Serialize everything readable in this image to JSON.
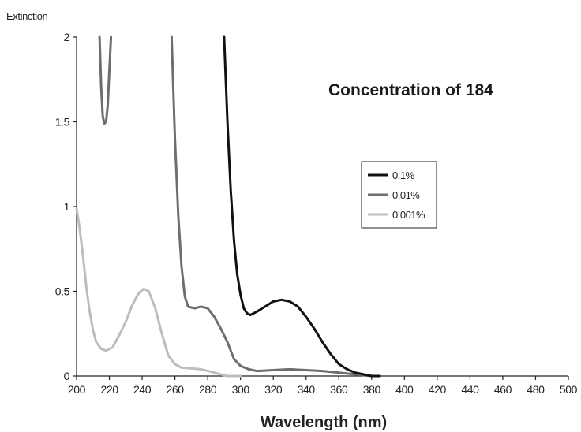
{
  "chart_data": {
    "type": "line",
    "title": "Concentration of 184",
    "xlabel": "Wavelength (nm)",
    "ylabel": "Extinction",
    "xlim": [
      200,
      500
    ],
    "ylim": [
      0,
      2
    ],
    "x_ticks": [
      200,
      220,
      240,
      260,
      280,
      300,
      320,
      340,
      360,
      380,
      400,
      420,
      440,
      460,
      480,
      500
    ],
    "y_ticks": [
      {
        "value": 0,
        "label": "0"
      },
      {
        "value": 0.5,
        "label": "0.5"
      },
      {
        "value": 1,
        "label": "1"
      },
      {
        "value": 1.5,
        "label": "1.5"
      },
      {
        "value": 2,
        "label": "2"
      }
    ],
    "legend_position": "right",
    "grid": false,
    "series": [
      {
        "name": "0.1%",
        "color": "#111111",
        "points": [
          [
            290,
            2.0
          ],
          [
            292,
            1.5
          ],
          [
            294,
            1.1
          ],
          [
            296,
            0.8
          ],
          [
            298,
            0.6
          ],
          [
            300,
            0.48
          ],
          [
            302,
            0.4
          ],
          [
            304,
            0.37
          ],
          [
            306,
            0.36
          ],
          [
            310,
            0.38
          ],
          [
            315,
            0.41
          ],
          [
            320,
            0.44
          ],
          [
            325,
            0.45
          ],
          [
            330,
            0.44
          ],
          [
            335,
            0.41
          ],
          [
            340,
            0.35
          ],
          [
            345,
            0.28
          ],
          [
            350,
            0.2
          ],
          [
            355,
            0.13
          ],
          [
            360,
            0.07
          ],
          [
            365,
            0.04
          ],
          [
            370,
            0.02
          ],
          [
            375,
            0.01
          ],
          [
            380,
            0.0
          ],
          [
            385,
            0.0
          ]
        ]
      },
      {
        "name": "0.01%",
        "color": "#6e6e6e",
        "points": [
          [
            214,
            2.0
          ],
          [
            215,
            1.7
          ],
          [
            216,
            1.53
          ],
          [
            217,
            1.49
          ],
          [
            218,
            1.5
          ],
          [
            219,
            1.6
          ],
          [
            220,
            1.8
          ],
          [
            221,
            2.0
          ],
          [
            258,
            2.0
          ],
          [
            260,
            1.4
          ],
          [
            262,
            0.95
          ],
          [
            264,
            0.65
          ],
          [
            266,
            0.47
          ],
          [
            268,
            0.41
          ],
          [
            272,
            0.4
          ],
          [
            276,
            0.41
          ],
          [
            280,
            0.4
          ],
          [
            284,
            0.35
          ],
          [
            288,
            0.28
          ],
          [
            292,
            0.2
          ],
          [
            296,
            0.1
          ],
          [
            300,
            0.06
          ],
          [
            305,
            0.04
          ],
          [
            310,
            0.03
          ],
          [
            320,
            0.035
          ],
          [
            330,
            0.04
          ],
          [
            340,
            0.035
          ],
          [
            350,
            0.03
          ],
          [
            360,
            0.02
          ],
          [
            370,
            0.01
          ],
          [
            375,
            0.005
          ],
          [
            380,
            0.0
          ]
        ]
      },
      {
        "name": "0.001%",
        "color": "#bdbdbd",
        "points": [
          [
            200,
            0.99
          ],
          [
            202,
            0.86
          ],
          [
            204,
            0.7
          ],
          [
            206,
            0.52
          ],
          [
            208,
            0.38
          ],
          [
            210,
            0.27
          ],
          [
            212,
            0.2
          ],
          [
            215,
            0.16
          ],
          [
            218,
            0.15
          ],
          [
            222,
            0.17
          ],
          [
            226,
            0.24
          ],
          [
            230,
            0.32
          ],
          [
            234,
            0.42
          ],
          [
            238,
            0.49
          ],
          [
            241,
            0.515
          ],
          [
            244,
            0.5
          ],
          [
            248,
            0.4
          ],
          [
            252,
            0.25
          ],
          [
            256,
            0.12
          ],
          [
            260,
            0.07
          ],
          [
            264,
            0.05
          ],
          [
            270,
            0.045
          ],
          [
            276,
            0.04
          ],
          [
            282,
            0.025
          ],
          [
            288,
            0.01
          ],
          [
            292,
            0.0
          ],
          [
            300,
            0.0
          ],
          [
            400,
            0.0
          ],
          [
            500,
            0.0
          ]
        ]
      }
    ]
  }
}
